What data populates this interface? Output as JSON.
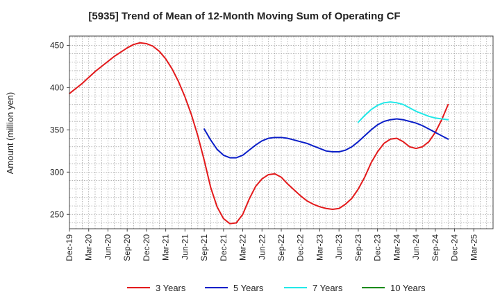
{
  "chart_data": {
    "type": "line",
    "title": "[5935]  Trend of Mean of 12-Month Moving Sum of Operating CF",
    "ylabel": "Amount (million yen)",
    "xlabel": "",
    "ylim": [
      233,
      461
    ],
    "yticks": [
      250,
      300,
      350,
      400,
      450
    ],
    "grid": true,
    "legend_position": "bottom",
    "x_tick_labels": [
      "Dec-19",
      "Mar-20",
      "Jun-20",
      "Sep-20",
      "Dec-20",
      "Mar-21",
      "Jun-21",
      "Sep-21",
      "Dec-21",
      "Mar-22",
      "Jun-22",
      "Sep-22",
      "Dec-22",
      "Mar-23",
      "Jun-23",
      "Sep-23",
      "Dec-23",
      "Mar-24",
      "Jun-24",
      "Sep-24",
      "Dec-24",
      "Mar-25"
    ],
    "series": [
      {
        "name": "3 Years",
        "color": "#e31a1c",
        "start_month_index": 0,
        "values": [
          393,
          399,
          405,
          412,
          419,
          425,
          431,
          437,
          442,
          447,
          451,
          453,
          452,
          449,
          443,
          434,
          422,
          407,
          389,
          368,
          343,
          314,
          282,
          259,
          245,
          239,
          240,
          250,
          268,
          283,
          292,
          297,
          298,
          294,
          286,
          279,
          272,
          266,
          262,
          259,
          257,
          256,
          257,
          262,
          269,
          280,
          294,
          311,
          324,
          334,
          339,
          340,
          336,
          330,
          328,
          330,
          336,
          347,
          362,
          380
        ]
      },
      {
        "name": "5 Years",
        "color": "#0a1ec8",
        "start_month_index": 21,
        "values": [
          351,
          338,
          327,
          320,
          317,
          317,
          320,
          326,
          332,
          337,
          340,
          341,
          341,
          340,
          338,
          336,
          334,
          331,
          328,
          325,
          324,
          324,
          326,
          330,
          336,
          343,
          350,
          356,
          360,
          362,
          363,
          362,
          360,
          358,
          355,
          351,
          347,
          343,
          339
        ]
      },
      {
        "name": "7 Years",
        "color": "#22e8e8",
        "start_month_index": 45,
        "values": [
          359,
          367,
          374,
          379,
          382,
          383,
          382,
          380,
          376,
          372,
          369,
          366,
          364,
          363,
          362
        ]
      },
      {
        "name": "10 Years",
        "color": "#1a8a1a",
        "start_month_index": 0,
        "values": []
      }
    ]
  }
}
